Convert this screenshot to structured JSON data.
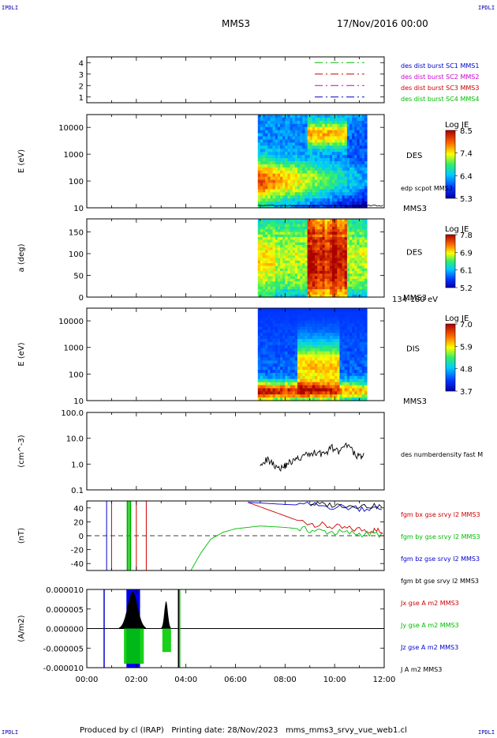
{
  "corners": {
    "tl": "IPDLI",
    "tr": "IPDLI",
    "bl": "IPDLI",
    "br": "IPDLI"
  },
  "header": {
    "title": "MMS3",
    "date": "17/Nov/2016 00:00"
  },
  "footer": {
    "text": "Produced by cl (IRAP)   Printing date: 28/Nov/2023   mms_mms3_srvy_vue_web1.cl"
  },
  "colors": {
    "s1": "#0000cc",
    "s2": "#cc00cc",
    "s3": "#cc0000",
    "s4": "#00bb00"
  },
  "time_axis": {
    "ticks": [
      "00:00",
      "02:00",
      "04:00",
      "06:00",
      "08:00",
      "10:00",
      "12:00"
    ],
    "range_hours": [
      0,
      12
    ]
  },
  "chart_data": [
    {
      "id": "burst",
      "type": "line",
      "yticks": [
        "1",
        "2",
        "3",
        "4"
      ],
      "ylim": [
        0.5,
        4.5
      ],
      "series": [
        {
          "name": "des dist burst SC1 MMS1",
          "level": 1,
          "color": "#0000cc"
        },
        {
          "name": "des dist burst SC2 MMS2",
          "level": 2,
          "color": "#cc00cc"
        },
        {
          "name": "des dist burst SC3 MMS3",
          "level": 3,
          "color": "#cc0000"
        },
        {
          "name": "des dist burst SC4 MMS4",
          "level": 4,
          "color": "#00bb00"
        }
      ],
      "interval": [
        9.2,
        11.2
      ]
    },
    {
      "id": "des_e",
      "type": "heatmap",
      "ylabel": "E (eV)",
      "yscale": "log",
      "yticks": [
        "10",
        "100",
        "1000",
        "10000"
      ],
      "ylim": [
        10,
        30000
      ],
      "label": "DES",
      "sub": "MMS3",
      "extra": "edp scpot MMS3",
      "colorbar": {
        "title": "Log JE",
        "ticks": [
          "8.5",
          "7.4",
          "6.4",
          "5.3"
        ],
        "min": 5.3,
        "max": 8.5
      },
      "data_range": [
        6.9,
        11.3
      ]
    },
    {
      "id": "des_pa",
      "type": "heatmap",
      "ylabel": "a (deg)",
      "yticks": [
        "0",
        "50",
        "100",
        "150"
      ],
      "ylim": [
        0,
        180
      ],
      "label": "DES",
      "sub": "MMS3",
      "extra": "134-180 eV",
      "colorbar": {
        "title": "Log JE",
        "ticks": [
          "7.8",
          "6.9",
          "6.1",
          "5.2"
        ],
        "min": 5.2,
        "max": 7.8
      },
      "data_range": [
        6.9,
        11.3
      ]
    },
    {
      "id": "dis_e",
      "type": "heatmap",
      "ylabel": "E (eV)",
      "yscale": "log",
      "yticks": [
        "10",
        "100",
        "1000",
        "10000"
      ],
      "ylim": [
        10,
        30000
      ],
      "label": "DIS",
      "sub": "MMS3",
      "colorbar": {
        "title": "Log JE",
        "ticks": [
          "7.0",
          "5.9",
          "4.8",
          "3.7"
        ],
        "min": 3.7,
        "max": 7.0
      },
      "data_range": [
        6.9,
        11.3
      ]
    },
    {
      "id": "density",
      "type": "line",
      "ylabel": "(cm^-3)",
      "yscale": "log",
      "yticks": [
        "0.1",
        "1.0",
        "10.0",
        "100.0"
      ],
      "ylim": [
        0.1,
        100
      ],
      "series": [
        {
          "name": "des numberdensity fast M",
          "color": "#000000",
          "x": [
            7.0,
            7.3,
            7.6,
            7.9,
            8.1,
            8.4,
            8.7,
            9.0,
            9.3,
            9.6,
            9.9,
            10.2,
            10.5,
            10.8,
            11.0,
            11.2
          ],
          "y": [
            1.2,
            1.5,
            0.9,
            0.7,
            1.1,
            1.4,
            2.0,
            2.5,
            3.0,
            2.4,
            4.5,
            2.8,
            5.5,
            2.5,
            2.0,
            2.2
          ]
        }
      ]
    },
    {
      "id": "fgm",
      "type": "line",
      "ylabel": "(nT)",
      "yticks": [
        "-40",
        "-20",
        "0",
        "20",
        "40"
      ],
      "ylim": [
        -50,
        50
      ],
      "series": [
        {
          "name": "fgm bx gse srvy l2 MMS3",
          "color": "#cc0000",
          "x": [
            6.5,
            7.5,
            8.5,
            9.5,
            10.5,
            11.5,
            12.0
          ],
          "y": [
            48,
            35,
            22,
            15,
            10,
            8,
            6
          ]
        },
        {
          "name": "fgm by gse srvy l2 MMS3",
          "color": "#00bb00",
          "x": [
            4.2,
            4.6,
            5.0,
            5.5,
            6.0,
            6.5,
            7.0,
            8.0,
            9.0,
            10.0,
            11.0,
            12.0
          ],
          "y": [
            -50,
            -25,
            -5,
            5,
            10,
            12,
            14,
            12,
            8,
            5,
            3,
            2
          ]
        },
        {
          "name": "fgm bz gse srvy l2 MMS3",
          "color": "#0000cc",
          "x": [
            6.5,
            8.0,
            9.5,
            11.0,
            12.0
          ],
          "y": [
            48,
            45,
            43,
            40,
            38
          ]
        },
        {
          "name": "fgm bt gse srvy l2 MMS3",
          "color": "#000000",
          "x": [
            9.0,
            10.0,
            11.0,
            12.0
          ],
          "y": [
            46,
            44,
            43,
            42
          ]
        }
      ]
    },
    {
      "id": "current",
      "type": "area",
      "ylabel": "(A/m2)",
      "yticks": [
        "-0.000010",
        "-0.000005",
        "0.000000",
        "0.000005",
        "0.000010"
      ],
      "ylim": [
        -1e-05,
        1e-05
      ],
      "series": [
        {
          "name": "Jx gse A m2 MMS3",
          "color": "#cc0000"
        },
        {
          "name": "Jy gse A m2 MMS3",
          "color": "#00bb00"
        },
        {
          "name": "Jz gse A m2 MMS3",
          "color": "#0000cc"
        },
        {
          "name": "J A m2 MMS3",
          "color": "#000000"
        }
      ]
    }
  ]
}
